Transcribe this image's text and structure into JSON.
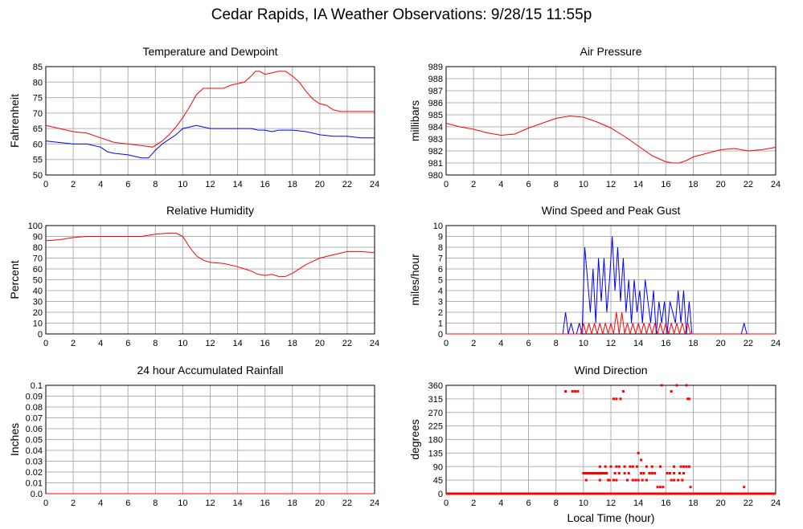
{
  "page_title": "Cedar Rapids, IA Weather Observations: 9/28/15 11:55p",
  "colors": {
    "red": "#ff0000",
    "blue": "#0000ff",
    "grid": "#b0b0b0",
    "frame": "#000000"
  },
  "chart_data": [
    {
      "type": "line",
      "title": "Temperature and Dewpoint",
      "xlabel": "",
      "ylabel": "Fahrenheit",
      "xlim": [
        0,
        24
      ],
      "ylim": [
        50,
        85
      ],
      "xticks": [
        "0",
        "2",
        "4",
        "6",
        "8",
        "10",
        "12",
        "14",
        "16",
        "18",
        "20",
        "22",
        "24"
      ],
      "yticks": [
        "50",
        "55",
        "60",
        "65",
        "70",
        "75",
        "80",
        "85"
      ],
      "grid": true,
      "series": [
        {
          "color": "#ff0000",
          "x": [
            0,
            1,
            2,
            3,
            4,
            5,
            6,
            7,
            7.8,
            8.5,
            9,
            9.5,
            10,
            10.5,
            11,
            11.5,
            12,
            12.5,
            13,
            13.5,
            14,
            14.5,
            15,
            15.3,
            15.6,
            16,
            16.5,
            17,
            17.5,
            18,
            18.5,
            19,
            19.5,
            20,
            20.5,
            21,
            21.5,
            22,
            23,
            24
          ],
          "y": [
            66,
            65,
            64,
            63.5,
            62,
            60.5,
            60,
            59.5,
            59,
            61,
            63,
            65.5,
            68.5,
            72,
            76,
            78,
            78,
            78,
            78,
            79,
            79.5,
            80,
            82,
            83.5,
            83.5,
            82.5,
            83,
            83.5,
            83.5,
            82,
            80,
            77,
            74.5,
            73,
            72.5,
            71,
            70.5,
            70.5,
            70.5,
            70.5
          ]
        },
        {
          "color": "#0000ff",
          "x": [
            0,
            1,
            2,
            3,
            4,
            4.5,
            5,
            6,
            6.5,
            7,
            7.5,
            8,
            8.5,
            9,
            9.5,
            10,
            10.5,
            11,
            11.5,
            12,
            13,
            14,
            15,
            15.5,
            16,
            16.5,
            17,
            18,
            19,
            19.5,
            20,
            21,
            22,
            23,
            24
          ],
          "y": [
            61,
            60.5,
            60,
            60,
            59,
            57.5,
            57,
            56.5,
            56,
            55.5,
            55.5,
            58,
            60,
            61.5,
            63,
            65,
            65.5,
            66,
            65.5,
            65,
            65,
            65,
            65,
            64.5,
            64.5,
            64,
            64.5,
            64.5,
            64,
            63.5,
            63,
            62.5,
            62.5,
            62,
            62
          ]
        }
      ]
    },
    {
      "type": "line",
      "title": "Air Pressure",
      "xlabel": "",
      "ylabel": "millibars",
      "xlim": [
        0,
        24
      ],
      "ylim": [
        980,
        989
      ],
      "xticks": [
        "0",
        "2",
        "4",
        "6",
        "8",
        "10",
        "12",
        "14",
        "16",
        "18",
        "20",
        "22",
        "24"
      ],
      "yticks": [
        "980",
        "981",
        "982",
        "983",
        "984",
        "985",
        "986",
        "987",
        "988",
        "989"
      ],
      "grid": true,
      "series": [
        {
          "color": "#ff0000",
          "x": [
            0,
            1,
            2,
            3,
            4,
            5,
            6,
            7,
            8,
            9,
            10,
            11,
            12,
            13,
            14,
            15,
            16,
            16.5,
            17,
            17.5,
            18,
            19,
            20,
            21,
            22,
            23,
            24
          ],
          "y": [
            984.3,
            984.0,
            983.8,
            983.5,
            983.3,
            983.4,
            983.9,
            984.3,
            984.7,
            984.9,
            984.8,
            984.4,
            983.9,
            983.2,
            982.4,
            981.6,
            981.1,
            981.0,
            981.0,
            981.2,
            981.5,
            981.8,
            982.1,
            982.2,
            982.0,
            982.1,
            982.3
          ]
        }
      ]
    },
    {
      "type": "line",
      "title": "Relative Humidity",
      "xlabel": "",
      "ylabel": "Percent",
      "xlim": [
        0,
        24
      ],
      "ylim": [
        0,
        100
      ],
      "xticks": [
        "0",
        "2",
        "4",
        "6",
        "8",
        "10",
        "12",
        "14",
        "16",
        "18",
        "20",
        "22",
        "24"
      ],
      "yticks": [
        "0",
        "10",
        "20",
        "30",
        "40",
        "50",
        "60",
        "70",
        "80",
        "90",
        "100"
      ],
      "grid": true,
      "series": [
        {
          "color": "#ff0000",
          "x": [
            0,
            1,
            2,
            3,
            4,
            5,
            6,
            7,
            8,
            9,
            9.5,
            10,
            10.5,
            11,
            11.5,
            12,
            13,
            14,
            14.5,
            15,
            15.5,
            16,
            16.5,
            17,
            17.5,
            18,
            19,
            20,
            21,
            22,
            23,
            24
          ],
          "y": [
            86,
            87,
            89,
            90,
            90,
            90,
            90,
            90,
            92,
            93,
            93,
            90,
            80,
            72,
            68,
            66,
            65,
            62,
            60,
            58,
            55,
            54,
            55,
            53,
            53,
            56,
            64,
            70,
            73,
            76,
            76,
            75
          ]
        }
      ]
    },
    {
      "type": "line",
      "title": "Wind Speed and Peak Gust",
      "xlabel": "",
      "ylabel": "miles/hour",
      "xlim": [
        0,
        24
      ],
      "ylim": [
        0,
        10
      ],
      "xticks": [
        "0",
        "2",
        "4",
        "6",
        "8",
        "10",
        "12",
        "14",
        "16",
        "18",
        "20",
        "22",
        "24"
      ],
      "yticks": [
        "0",
        "1",
        "2",
        "3",
        "4",
        "5",
        "6",
        "7",
        "8",
        "9",
        "10"
      ],
      "grid": true,
      "series": [
        {
          "color": "#0000ff",
          "x": [
            0,
            8.5,
            8.7,
            8.9,
            9.1,
            9.3,
            9.5,
            9.7,
            9.9,
            10.1,
            10.3,
            10.5,
            10.7,
            10.9,
            11.1,
            11.3,
            11.5,
            11.7,
            11.9,
            12.1,
            12.3,
            12.5,
            12.7,
            12.9,
            13.1,
            13.3,
            13.5,
            13.7,
            13.9,
            14.1,
            14.3,
            14.5,
            14.7,
            14.9,
            15.1,
            15.3,
            15.5,
            15.7,
            15.9,
            16.1,
            16.3,
            16.5,
            16.7,
            16.9,
            17.1,
            17.3,
            17.5,
            17.7,
            17.9,
            18.1,
            21.5,
            21.7,
            21.9,
            24
          ],
          "y": [
            0,
            0,
            2,
            0,
            1,
            0,
            0,
            1,
            0,
            8,
            5,
            2,
            6,
            1,
            7,
            3,
            7,
            2,
            5,
            9,
            4,
            8,
            3,
            7,
            2,
            5,
            1,
            5,
            2,
            4,
            1,
            5,
            3,
            1,
            4,
            0,
            3,
            1,
            3,
            0,
            3,
            2,
            1,
            4,
            1,
            4,
            0,
            3,
            0,
            0,
            0,
            1,
            0,
            0
          ]
        },
        {
          "color": "#ff0000",
          "x": [
            0,
            9.8,
            10.0,
            10.2,
            10.4,
            10.6,
            10.8,
            11.0,
            11.2,
            11.4,
            11.6,
            11.8,
            12.0,
            12.2,
            12.4,
            12.6,
            12.8,
            13.0,
            13.2,
            13.4,
            13.6,
            13.8,
            14.0,
            14.2,
            14.4,
            14.6,
            14.8,
            15.0,
            15.2,
            15.4,
            15.6,
            15.8,
            16.0,
            16.2,
            16.4,
            16.6,
            16.8,
            17.0,
            17.2,
            17.4,
            17.6,
            17.8,
            18.0,
            24
          ],
          "y": [
            0,
            0,
            1,
            0,
            1,
            0,
            1,
            0,
            1,
            0,
            1,
            0,
            1,
            0,
            2,
            0,
            2,
            0,
            1,
            0,
            1,
            0,
            1,
            0,
            1,
            0,
            1,
            0,
            1,
            0,
            1,
            0,
            1,
            0,
            1,
            0,
            1,
            0,
            1,
            0,
            1,
            0,
            0,
            0
          ]
        }
      ]
    },
    {
      "type": "line",
      "title": "24 hour Accumulated Rainfall",
      "xlabel": "",
      "ylabel": "Inches",
      "xlim": [
        0,
        24
      ],
      "ylim": [
        0,
        0.1
      ],
      "xticks": [
        "0",
        "2",
        "4",
        "6",
        "8",
        "10",
        "12",
        "14",
        "16",
        "18",
        "20",
        "22",
        "24"
      ],
      "yticks": [
        "0.0",
        "0.01",
        "0.02",
        "0.03",
        "0.04",
        "0.05",
        "0.06",
        "0.07",
        "0.08",
        "0.09",
        "0.1"
      ],
      "grid": true,
      "series": [
        {
          "color": "#ff0000",
          "x": [
            0,
            24
          ],
          "y": [
            0,
            0
          ]
        }
      ]
    },
    {
      "type": "scatter",
      "title": "Wind Direction",
      "xlabel": "Local Time (hour)",
      "ylabel": "degrees",
      "xlim": [
        0,
        24
      ],
      "ylim": [
        0,
        360
      ],
      "xticks": [
        "0",
        "2",
        "4",
        "6",
        "8",
        "10",
        "12",
        "14",
        "16",
        "18",
        "20",
        "22",
        "24"
      ],
      "yticks": [
        "0",
        "45",
        "90",
        "135",
        "180",
        "225",
        "270",
        "315",
        "360"
      ],
      "grid": true,
      "series": [
        {
          "color": "#ff0000",
          "x": [
            8.7,
            9.2,
            9.4,
            9.6,
            12.2,
            12.4,
            12.7,
            12.9,
            15.7,
            16.4,
            16.8,
            17.5,
            17.6,
            17.7,
            10.0,
            10.1,
            10.2,
            10.3,
            10.4,
            10.5,
            10.6,
            10.7,
            10.8,
            10.9,
            11.0,
            11.1,
            11.2,
            11.3,
            11.4,
            11.5,
            11.6,
            11.7,
            12.3,
            12.6,
            13.0,
            13.3,
            14.2,
            14.4,
            15.0,
            15.2,
            16.1,
            16.3,
            11.2,
            11.6,
            12.0,
            12.4,
            12.6,
            13.0,
            13.4,
            13.6,
            13.9,
            14.6,
            15.0,
            15.6,
            16.6,
            17.1,
            17.3,
            17.5,
            17.7,
            10.2,
            11.2,
            11.8,
            12.4,
            13.2,
            13.8,
            14.0,
            14.3,
            14.6,
            16.4,
            16.6,
            16.9,
            17.2,
            15.4,
            15.6,
            15.8,
            17.8,
            14.0,
            14.2,
            21.7,
            11.9,
            12.2,
            13.6,
            14.8,
            15.0,
            16.6,
            17.0,
            17.3
          ],
          "y": [
            340,
            340,
            340,
            340,
            315,
            315,
            315,
            340,
            360,
            340,
            360,
            360,
            315,
            315,
            68,
            68,
            68,
            68,
            68,
            68,
            68,
            68,
            68,
            68,
            68,
            68,
            68,
            68,
            68,
            68,
            68,
            68,
            68,
            68,
            68,
            68,
            68,
            68,
            68,
            68,
            68,
            68,
            90,
            90,
            90,
            90,
            90,
            90,
            90,
            90,
            90,
            90,
            90,
            90,
            90,
            90,
            90,
            90,
            90,
            45,
            45,
            45,
            45,
            45,
            45,
            45,
            45,
            45,
            45,
            45,
            45,
            45,
            22,
            22,
            22,
            22,
            135,
            112,
            22,
            45,
            45,
            45,
            68,
            68,
            68,
            68,
            68
          ]
        }
      ]
    }
  ]
}
